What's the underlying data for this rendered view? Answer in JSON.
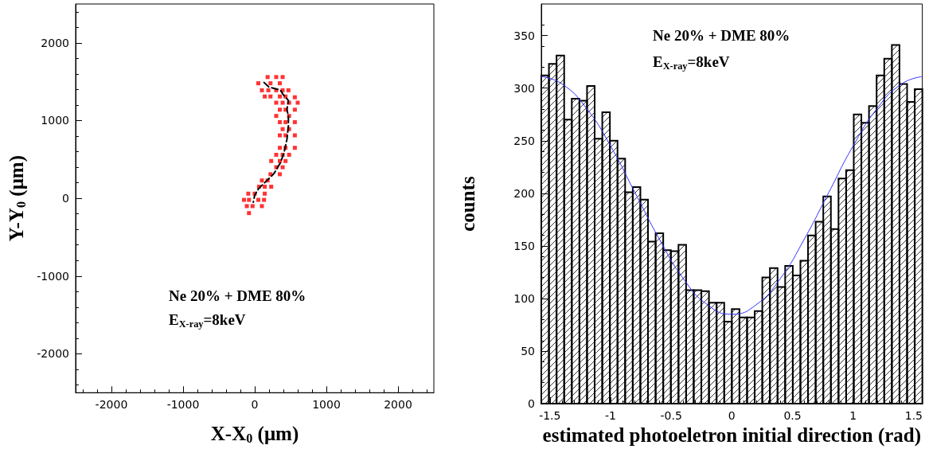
{
  "chart_data": [
    {
      "type": "scatter",
      "xlabel": "X-X$_{0}$ (μm)",
      "ylabel": "Y-Y$_{0}$ (μm)",
      "xlim": [
        -2500,
        2500
      ],
      "xticks": [
        -2000,
        -1000,
        0,
        1000,
        2000
      ],
      "ylim": [
        -2500,
        2500
      ],
      "yticks": [
        -2000,
        -1000,
        0,
        1000,
        2000
      ],
      "annotations": [
        "Ne 20% + DME 80%",
        "E$_{X-ray}$=8keV"
      ],
      "series": [
        {
          "type": "scatter",
          "color": "#ff0000",
          "marker": "square",
          "x": [
            180,
            300,
            390,
            50,
            220,
            350,
            100,
            190,
            300,
            390,
            470,
            140,
            220,
            350,
            430,
            560,
            300,
            390,
            480,
            600,
            350,
            430,
            560,
            300,
            480,
            350,
            430,
            560,
            390,
            480,
            350,
            430,
            560,
            350,
            430,
            560,
            300,
            390,
            480,
            230,
            350,
            430,
            300,
            390,
            220,
            350,
            100,
            180,
            60,
            140,
            230,
            -90,
            0,
            140,
            -150,
            -80,
            50,
            130,
            -110,
            -30,
            100,
            -80
          ],
          "values": [
            1560,
            1560,
            1560,
            1480,
            1480,
            1480,
            1390,
            1390,
            1390,
            1390,
            1390,
            1310,
            1310,
            1310,
            1310,
            1300,
            1230,
            1230,
            1230,
            1230,
            1140,
            1140,
            1140,
            1060,
            1060,
            980,
            980,
            980,
            890,
            890,
            810,
            810,
            810,
            650,
            650,
            650,
            560,
            560,
            560,
            480,
            480,
            480,
            400,
            400,
            310,
            310,
            230,
            230,
            150,
            150,
            150,
            60,
            60,
            60,
            -20,
            -20,
            -20,
            -20,
            -100,
            -100,
            -100,
            -190
          ]
        },
        {
          "type": "line",
          "color": "#000000",
          "marker": "none",
          "line_style": "dashed",
          "x": [
            130,
            200,
            290,
            360,
            400,
            470,
            450,
            470,
            470,
            450,
            410,
            360,
            270,
            160,
            50,
            0,
            -20
          ],
          "values": [
            1490,
            1430,
            1410,
            1390,
            1330,
            1260,
            1140,
            1060,
            930,
            760,
            590,
            460,
            320,
            220,
            120,
            40,
            -50
          ]
        }
      ]
    },
    {
      "type": "histogram",
      "xlabel": "estimated photoeletron initial direction (rad)",
      "ylabel": "counts",
      "xlim": [
        -1.5708,
        1.5708
      ],
      "xticks": [
        -1.5,
        -1,
        -0.5,
        0,
        0.5,
        1,
        1.5
      ],
      "ylim": [
        0,
        380
      ],
      "yticks": [
        0,
        50,
        100,
        150,
        200,
        250,
        300,
        350
      ],
      "annotations": [
        "Ne 20% + DME 80%",
        "E$_{X-ray}$=8keV"
      ],
      "bins": [
        -1.5708,
        -1.508,
        -1.4451,
        -1.3823,
        -1.3195,
        -1.2566,
        -1.1938,
        -1.131,
        -1.0681,
        -1.0053,
        -0.9425,
        -0.8796,
        -0.8168,
        -0.754,
        -0.6912,
        -0.6283,
        -0.5655,
        -0.5027,
        -0.4398,
        -0.377,
        -0.3142,
        -0.2513,
        -0.1885,
        -0.1257,
        -0.0628,
        0,
        0.0628,
        0.1257,
        0.1885,
        0.2513,
        0.3142,
        0.377,
        0.4398,
        0.5027,
        0.5655,
        0.6283,
        0.6912,
        0.754,
        0.8168,
        0.8796,
        0.9425,
        1.0053,
        1.0681,
        1.131,
        1.1938,
        1.2566,
        1.3195,
        1.3823,
        1.4451,
        1.508,
        1.5708
      ],
      "series": [
        {
          "type": "histogram",
          "color": "#000000",
          "values": [
            312,
            323,
            331,
            270,
            290,
            288,
            302,
            252,
            277,
            250,
            233,
            201,
            206,
            194,
            154,
            162,
            146,
            145,
            151,
            108,
            108,
            107,
            96,
            96,
            78,
            90,
            82,
            82,
            88,
            120,
            129,
            111,
            131,
            122,
            136,
            160,
            173,
            197,
            166,
            214,
            222,
            275,
            267,
            283,
            312,
            328,
            341,
            304,
            287,
            299
          ]
        },
        {
          "type": "line",
          "color": "#3333ff",
          "marker": "none",
          "x": [
            -1.5708,
            -1.4,
            -1.2,
            -1,
            -0.8,
            -0.6,
            -0.4,
            -0.2,
            0,
            0.2,
            0.4,
            0.6,
            0.8,
            1,
            1.2,
            1.4,
            1.5708
          ],
          "values": [
            311,
            304,
            281,
            245,
            201,
            157,
            119,
            94,
            85,
            94,
            119,
            157,
            201,
            245,
            281,
            304,
            311
          ]
        }
      ]
    }
  ]
}
